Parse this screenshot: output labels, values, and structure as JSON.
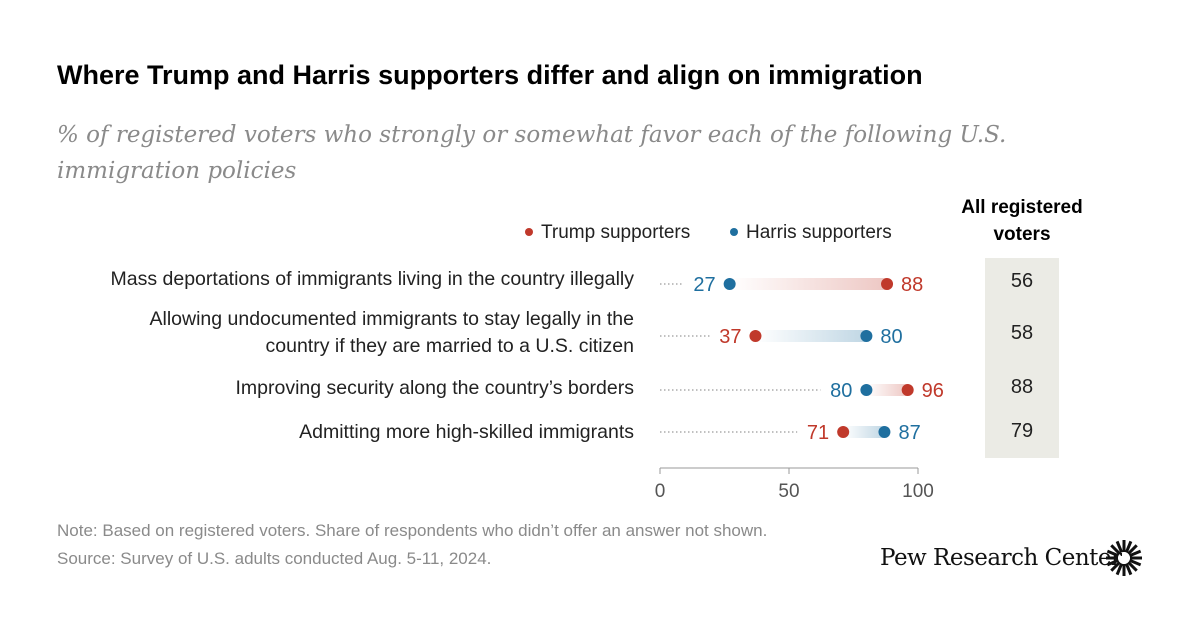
{
  "chart_data": {
    "type": "dot",
    "title": "Where Trump and Harris supporters differ and align on immigration",
    "subtitle": "% of registered voters who strongly or somewhat favor each of the following U.S. immigration policies",
    "series": [
      {
        "name": "Trump supporters",
        "color": "#c0392b",
        "values": [
          88,
          37,
          96,
          71
        ]
      },
      {
        "name": "Harris supporters",
        "color": "#1f6f9f",
        "values": [
          27,
          80,
          80,
          87
        ]
      }
    ],
    "categories": [
      "Mass deportations of immigrants living in the country illegally",
      "Allowing undocumented immigrants to stay legally in the country if they are married to a U.S. citizen",
      "Improving security along the country’s borders",
      "Admitting more high-skilled immigrants"
    ],
    "all_registered_voters_header": "All registered voters",
    "all_registered_voters": [
      56,
      58,
      88,
      79
    ],
    "xlim": [
      0,
      100
    ],
    "xticks": [
      0,
      50,
      100
    ],
    "legend_position": "top"
  },
  "labels": {
    "row1": "Mass deportations of immigrants living in the country illegally",
    "row2a": "Allowing undocumented immigrants to stay legally in the",
    "row2b": "country if they are married to a U.S. citizen",
    "row3": "Improving security along the country’s borders",
    "row4": "Admitting more high-skilled immigrants"
  },
  "note": "Note: Based on registered voters. Share of respondents who didn’t offer an answer not shown.",
  "source": "Source: Survey of U.S. adults conducted Aug. 5-11, 2024.",
  "brand": "Pew Research Center",
  "colors": {
    "trump": "#c0392b",
    "harris": "#1f6f9f",
    "box": "#ebebe5"
  }
}
